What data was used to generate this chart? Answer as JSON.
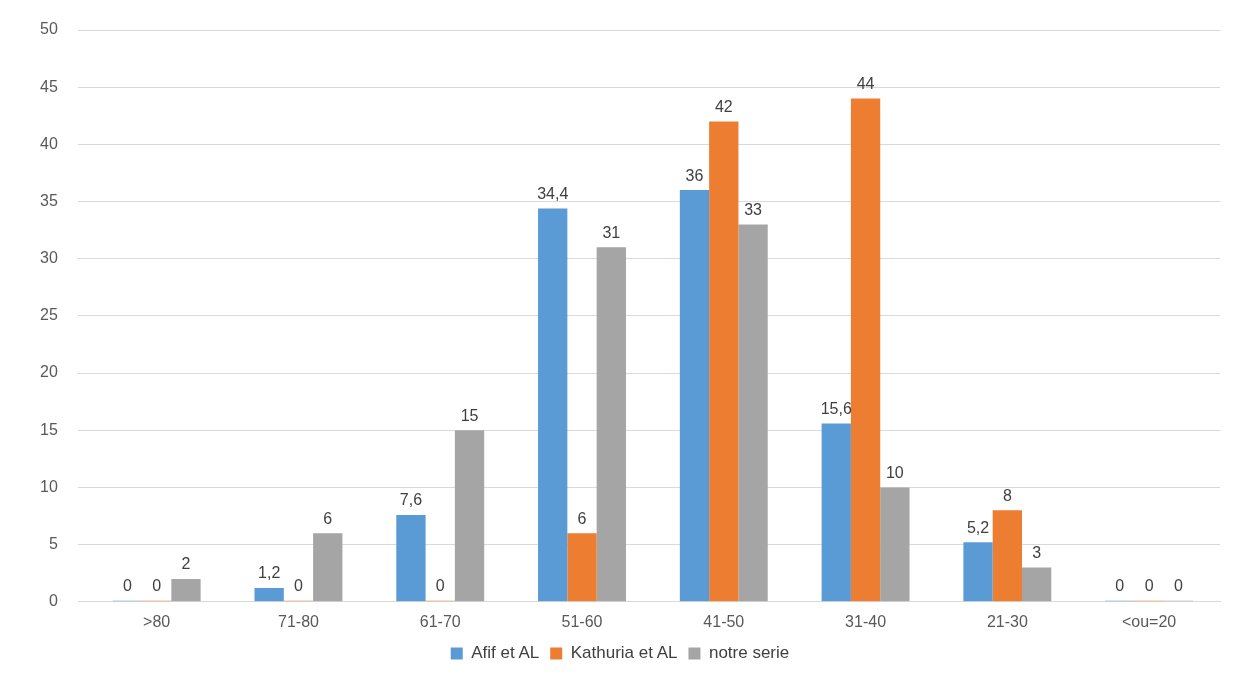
{
  "chart_data": {
    "type": "bar",
    "categories": [
      ">80",
      "71-80",
      "61-70",
      "51-60",
      "41-50",
      "31-40",
      "21-30",
      "<ou=20"
    ],
    "series": [
      {
        "name": "Afif et AL",
        "color": "#5b9bd5",
        "values": [
          0,
          1.2,
          7.6,
          34.4,
          36,
          15.6,
          5.2,
          0
        ],
        "value_labels": [
          "0",
          "1,2",
          "7,6",
          "34,4",
          "36",
          "15,6",
          "5,2",
          "0"
        ]
      },
      {
        "name": "Kathuria et AL",
        "color": "#ed7d31",
        "values": [
          0,
          0,
          0,
          6,
          42,
          44,
          8,
          0
        ],
        "value_labels": [
          "0",
          "0",
          "0",
          "6",
          "42",
          "44",
          "8",
          "0"
        ]
      },
      {
        "name": "notre serie",
        "color": "#a5a5a5",
        "values": [
          2,
          6,
          15,
          31,
          33,
          10,
          3,
          0
        ],
        "value_labels": [
          "2",
          "6",
          "15",
          "31",
          "33",
          "10",
          "3",
          "0"
        ]
      }
    ],
    "ylim": [
      0,
      50
    ],
    "yticks": [
      0,
      5,
      10,
      15,
      20,
      25,
      30,
      35,
      40,
      45,
      50
    ],
    "grid": "y",
    "legend": "bottom"
  }
}
